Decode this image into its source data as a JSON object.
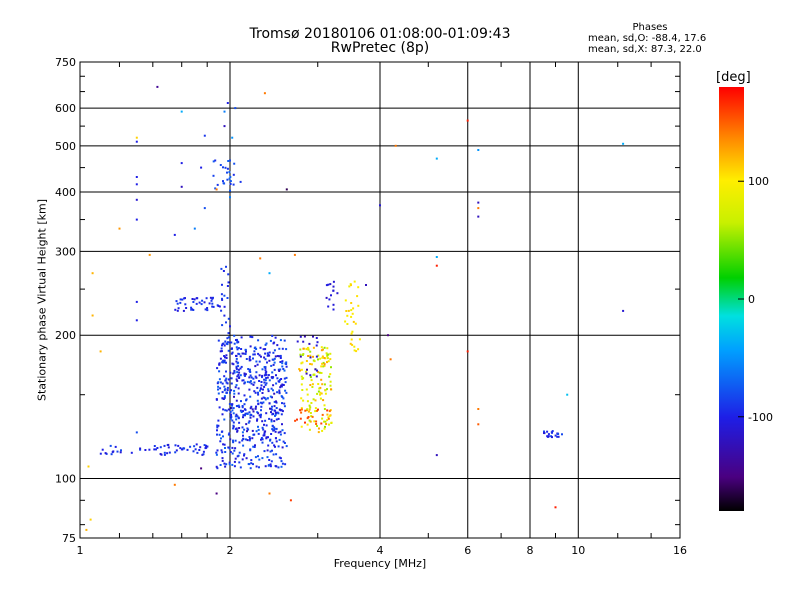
{
  "chart_data": {
    "type": "scatter",
    "title": "Tromsø 20180106 01:08:00-01:09:43",
    "subtitle": "RwPretec (8p)",
    "xlabel": "Frequency [MHz]",
    "ylabel": "Stationary phase Virtual Height [km]",
    "x_scale": "log",
    "y_scale": "log",
    "xlim": [
      1,
      16
    ],
    "ylim": [
      75,
      750
    ],
    "x_ticks": [
      1,
      2,
      4,
      6,
      8,
      10,
      16
    ],
    "x_tick_labels": [
      "1",
      "2",
      "4",
      "6",
      "8",
      "10",
      "16"
    ],
    "y_ticks": [
      75,
      100,
      200,
      300,
      400,
      500,
      600,
      750
    ],
    "y_tick_labels": [
      "75",
      "100",
      "200",
      "300",
      "400",
      "500",
      "600",
      "750"
    ],
    "grid": true,
    "stats": {
      "heading": "Phases",
      "o_mode": "mean, sd,O: -88.4, 17.6",
      "x_mode": "mean, sd,X:  87.3, 22.0"
    },
    "colorbar": {
      "label": "[deg]",
      "range": [
        -180,
        180
      ],
      "ticks": [
        100,
        0,
        -100
      ],
      "tick_labels": [
        "100",
        "0",
        "-100"
      ]
    },
    "clusters": [
      {
        "x": [
          1.88,
          2.6
        ],
        "y": [
          105,
          200
        ],
        "phase": [
          -110,
          -70
        ],
        "count": 480
      },
      {
        "x": [
          2.0,
          2.55
        ],
        "y": [
          120,
          185
        ],
        "phase": [
          -120,
          -80
        ],
        "count": 120
      },
      {
        "x": [
          1.1,
          1.9
        ],
        "y": [
          112,
          118
        ],
        "phase": [
          -110,
          -80
        ],
        "count": 60
      },
      {
        "x": [
          1.92,
          2.0
        ],
        "y": [
          150,
          280
        ],
        "phase": [
          -100,
          -80
        ],
        "count": 40
      },
      {
        "x": [
          1.55,
          1.95
        ],
        "y": [
          225,
          240
        ],
        "phase": [
          -110,
          -85
        ],
        "count": 45
      },
      {
        "x": [
          2.75,
          3.2
        ],
        "y": [
          125,
          190
        ],
        "phase": [
          50,
          130
        ],
        "count": 140
      },
      {
        "x": [
          2.7,
          3.2
        ],
        "y": [
          130,
          140
        ],
        "phase": [
          140,
          165
        ],
        "count": 20
      },
      {
        "x": [
          2.7,
          3.0
        ],
        "y": [
          160,
          200
        ],
        "phase": [
          -130,
          -100
        ],
        "count": 18
      },
      {
        "x": [
          3.1,
          3.3
        ],
        "y": [
          225,
          260
        ],
        "phase": [
          -120,
          -100
        ],
        "count": 14
      },
      {
        "x": [
          3.4,
          3.65
        ],
        "y": [
          185,
          260
        ],
        "phase": [
          90,
          115
        ],
        "count": 30
      },
      {
        "x": [
          8.4,
          9.3
        ],
        "y": [
          122,
          126
        ],
        "phase": [
          -110,
          -80
        ],
        "count": 22
      },
      {
        "x": [
          1.85,
          2.05
        ],
        "y": [
          400,
          470
        ],
        "phase": [
          -95,
          -70
        ],
        "count": 25
      }
    ],
    "points": [
      {
        "x": 1.03,
        "y": 78,
        "phase": 120
      },
      {
        "x": 1.05,
        "y": 82,
        "phase": 110
      },
      {
        "x": 1.04,
        "y": 106,
        "phase": 110
      },
      {
        "x": 1.06,
        "y": 220,
        "phase": 120
      },
      {
        "x": 1.06,
        "y": 270,
        "phase": 120
      },
      {
        "x": 1.1,
        "y": 185,
        "phase": 120
      },
      {
        "x": 1.2,
        "y": 335,
        "phase": 130
      },
      {
        "x": 1.3,
        "y": 430,
        "phase": -100
      },
      {
        "x": 1.3,
        "y": 415,
        "phase": -100
      },
      {
        "x": 1.3,
        "y": 385,
        "phase": -110
      },
      {
        "x": 1.3,
        "y": 350,
        "phase": -100
      },
      {
        "x": 1.3,
        "y": 520,
        "phase": 110
      },
      {
        "x": 1.3,
        "y": 510,
        "phase": -100
      },
      {
        "x": 1.3,
        "y": 235,
        "phase": -100
      },
      {
        "x": 1.3,
        "y": 215,
        "phase": -100
      },
      {
        "x": 1.3,
        "y": 125,
        "phase": -80
      },
      {
        "x": 1.38,
        "y": 295,
        "phase": 130
      },
      {
        "x": 1.43,
        "y": 665,
        "phase": -140
      },
      {
        "x": 1.55,
        "y": 325,
        "phase": -100
      },
      {
        "x": 1.55,
        "y": 97,
        "phase": 140
      },
      {
        "x": 1.6,
        "y": 590,
        "phase": -40
      },
      {
        "x": 1.6,
        "y": 460,
        "phase": -100
      },
      {
        "x": 1.6,
        "y": 410,
        "phase": -120
      },
      {
        "x": 1.7,
        "y": 335,
        "phase": -60
      },
      {
        "x": 1.75,
        "y": 450,
        "phase": -100
      },
      {
        "x": 1.75,
        "y": 105,
        "phase": -150
      },
      {
        "x": 1.78,
        "y": 370,
        "phase": -80
      },
      {
        "x": 1.78,
        "y": 525,
        "phase": -90
      },
      {
        "x": 1.88,
        "y": 405,
        "phase": 140
      },
      {
        "x": 1.88,
        "y": 93,
        "phase": -150
      },
      {
        "x": 1.95,
        "y": 550,
        "phase": -120
      },
      {
        "x": 1.95,
        "y": 590,
        "phase": -60
      },
      {
        "x": 1.98,
        "y": 615,
        "phase": -100
      },
      {
        "x": 2.0,
        "y": 390,
        "phase": -60
      },
      {
        "x": 2.02,
        "y": 520,
        "phase": -50
      },
      {
        "x": 2.05,
        "y": 600,
        "phase": -80
      },
      {
        "x": 2.1,
        "y": 420,
        "phase": -90
      },
      {
        "x": 2.3,
        "y": 290,
        "phase": 140
      },
      {
        "x": 2.35,
        "y": 645,
        "phase": 140
      },
      {
        "x": 2.4,
        "y": 93,
        "phase": 140
      },
      {
        "x": 2.4,
        "y": 270,
        "phase": -40
      },
      {
        "x": 2.6,
        "y": 405,
        "phase": -160
      },
      {
        "x": 2.65,
        "y": 90,
        "phase": 160
      },
      {
        "x": 2.7,
        "y": 295,
        "phase": 140
      },
      {
        "x": 3.75,
        "y": 255,
        "phase": -120
      },
      {
        "x": 4.0,
        "y": 375,
        "phase": -110
      },
      {
        "x": 4.15,
        "y": 200,
        "phase": -150
      },
      {
        "x": 4.2,
        "y": 178,
        "phase": 140
      },
      {
        "x": 4.3,
        "y": 500,
        "phase": 140
      },
      {
        "x": 5.2,
        "y": 470,
        "phase": -40
      },
      {
        "x": 5.2,
        "y": 292,
        "phase": -40
      },
      {
        "x": 5.2,
        "y": 280,
        "phase": 170
      },
      {
        "x": 5.2,
        "y": 112,
        "phase": -120
      },
      {
        "x": 6.0,
        "y": 565,
        "phase": 170
      },
      {
        "x": 6.0,
        "y": 185,
        "phase": 170
      },
      {
        "x": 6.3,
        "y": 490,
        "phase": -50
      },
      {
        "x": 6.3,
        "y": 380,
        "phase": -120
      },
      {
        "x": 6.3,
        "y": 370,
        "phase": 140
      },
      {
        "x": 6.3,
        "y": 355,
        "phase": -120
      },
      {
        "x": 6.3,
        "y": 140,
        "phase": 140
      },
      {
        "x": 6.3,
        "y": 130,
        "phase": 150
      },
      {
        "x": 9.0,
        "y": 87,
        "phase": 170
      },
      {
        "x": 9.5,
        "y": 150,
        "phase": -30
      },
      {
        "x": 12.3,
        "y": 505,
        "phase": -40
      },
      {
        "x": 12.3,
        "y": 225,
        "phase": -110
      }
    ]
  }
}
